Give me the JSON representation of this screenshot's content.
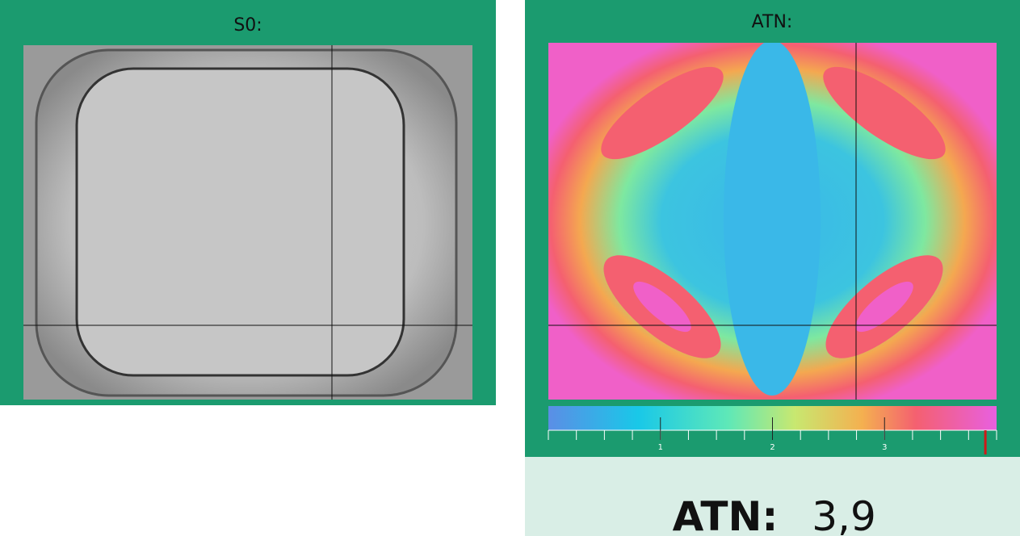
{
  "panels": [
    {
      "title": "S0:"
    },
    {
      "title": "ATN:"
    }
  ],
  "colorbar": {
    "range": [
      0,
      4
    ],
    "ticks": [
      1,
      2,
      3
    ],
    "minor_ticks": [
      0,
      0.25,
      0.5,
      0.75,
      1,
      1.25,
      1.5,
      1.75,
      2,
      2.25,
      2.5,
      2.75,
      3,
      3.25,
      3.5,
      3.75,
      4
    ]
  },
  "readout": {
    "label": "ATN:",
    "value": 3.9,
    "value_label": "3,9"
  }
}
